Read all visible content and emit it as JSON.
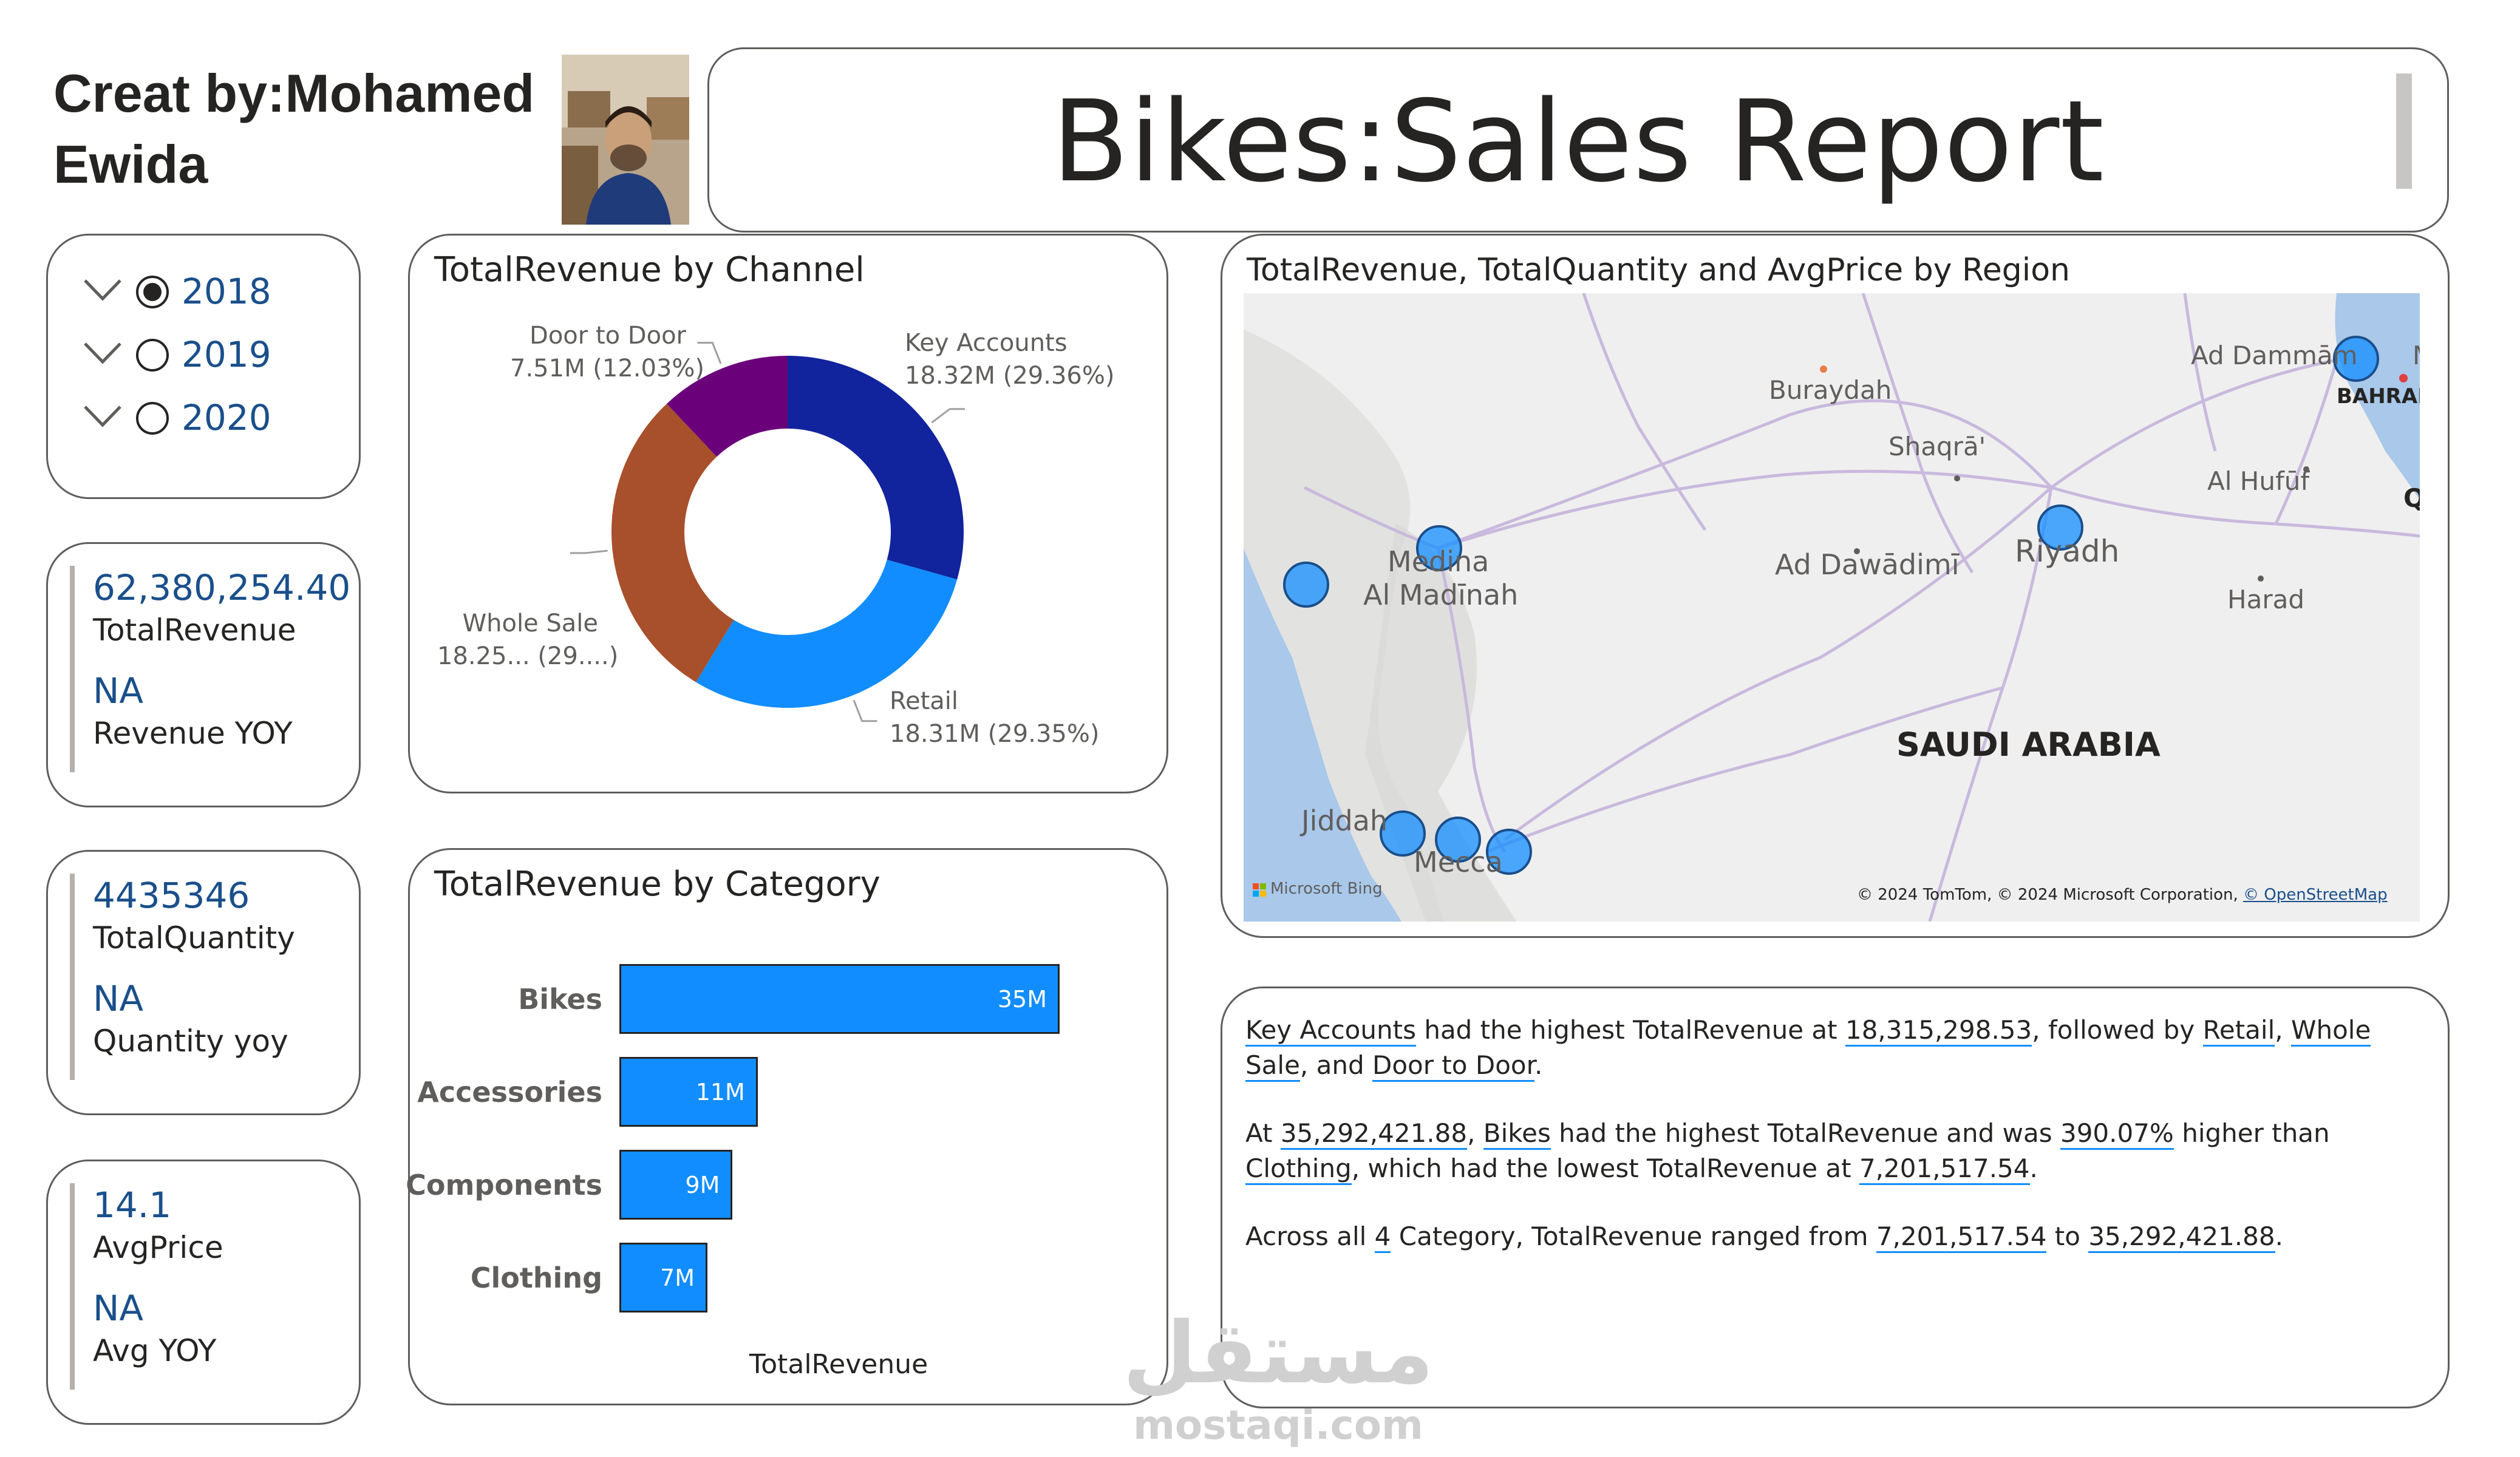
{
  "creator": {
    "line1": "Creat by:Mohamed",
    "line2": "Ewida"
  },
  "title": "Bikes:Sales Report",
  "year_slicer": {
    "options": [
      {
        "label": "2018",
        "selected": true
      },
      {
        "label": "2019",
        "selected": false
      },
      {
        "label": "2020",
        "selected": false
      }
    ]
  },
  "kpis": [
    {
      "value": "62,380,254.40",
      "label": "TotalRevenue",
      "yoy_value": "NA",
      "yoy_label": "Revenue YOY"
    },
    {
      "value": "4435346",
      "label": "TotalQuantity",
      "yoy_value": "NA",
      "yoy_label": "Quantity yoy"
    },
    {
      "value": "14.1",
      "label": "AvgPrice",
      "yoy_value": "NA",
      "yoy_label": "Avg YOY"
    }
  ],
  "chart_data": [
    {
      "type": "pie",
      "variant": "donut",
      "title": "TotalRevenue by Channel",
      "slices": [
        {
          "name": "Key Accounts",
          "value": 18.32,
          "unit": "M",
          "label": "18.32M (29.36%)",
          "color": "#12239e"
        },
        {
          "name": "Retail",
          "value": 18.31,
          "unit": "M",
          "label": "18.31M (29.35%)",
          "color": "#118dff"
        },
        {
          "name": "Whole Sale",
          "value": 18.25,
          "unit": "M",
          "label": "18.25... (29....)",
          "color": "#a84f2b"
        },
        {
          "name": "Door to Door",
          "value": 7.51,
          "unit": "M",
          "label": "7.51M (12.03%)",
          "color": "#6b007b"
        }
      ]
    },
    {
      "type": "bar",
      "orientation": "horizontal",
      "title": "TotalRevenue by Category",
      "xlabel": "TotalRevenue",
      "categories": [
        "Bikes",
        "Accessories",
        "Components",
        "Clothing"
      ],
      "values": [
        35,
        11,
        9,
        7
      ],
      "value_labels": [
        "35M",
        "11M",
        "9M",
        "7M"
      ],
      "color": "#118dff"
    }
  ],
  "map": {
    "title": "TotalRevenue, TotalQuantity and AvgPrice by Region",
    "places": {
      "ad_dammam": "Ad Dammām",
      "bahrain": "BAHRAI",
      "q": "Q",
      "m": "M",
      "buraydah": "Buraydah",
      "shaqra": "Shaqrā'",
      "al_hufuf": "Al Hufūf",
      "riyadh": "Riyadh",
      "medina": "Medina",
      "al_madinah": "Al Madīnah",
      "ad_dawadimi": "Ad Dawādimī",
      "harad": "Harad",
      "saudi_arabia": "SAUDI ARABIA",
      "jiddah": "Jiddah",
      "mecca": "Mecca"
    },
    "logo": "Microsoft Bing",
    "attribution": "© 2024 TomTom, © 2024 Microsoft Corporation,",
    "attribution_link": "© OpenStreetMap",
    "bubble_color": "#118dff"
  },
  "narrative": {
    "p1": {
      "a": "Key Accounts",
      "b": " had the highest TotalRevenue at ",
      "c": "18,315,298.53",
      "d": ", followed by ",
      "e": "Retail",
      "f": ", ",
      "g": "Whole Sale",
      "h": ", and ",
      "i": "Door to Door",
      "j": "."
    },
    "p2": {
      "a": "At ",
      "b": "35,292,421.88",
      "c": ", ",
      "d": "Bikes",
      "e": " had the highest TotalRevenue and was ",
      "f": "390.07%",
      "g": " higher than ",
      "h": "Clothing",
      "i": ", which had the lowest TotalRevenue at ",
      "j": "7,201,517.54",
      "k": "."
    },
    "p3": {
      "a": "Across all ",
      "b": "4",
      "c": " Category, TotalRevenue ranged from ",
      "d": "7,201,517.54",
      "e": " to ",
      "f": "35,292,421.88",
      "g": "."
    }
  },
  "watermark": {
    "arabic": "مستقل",
    "latin": "mostaqi.com"
  }
}
